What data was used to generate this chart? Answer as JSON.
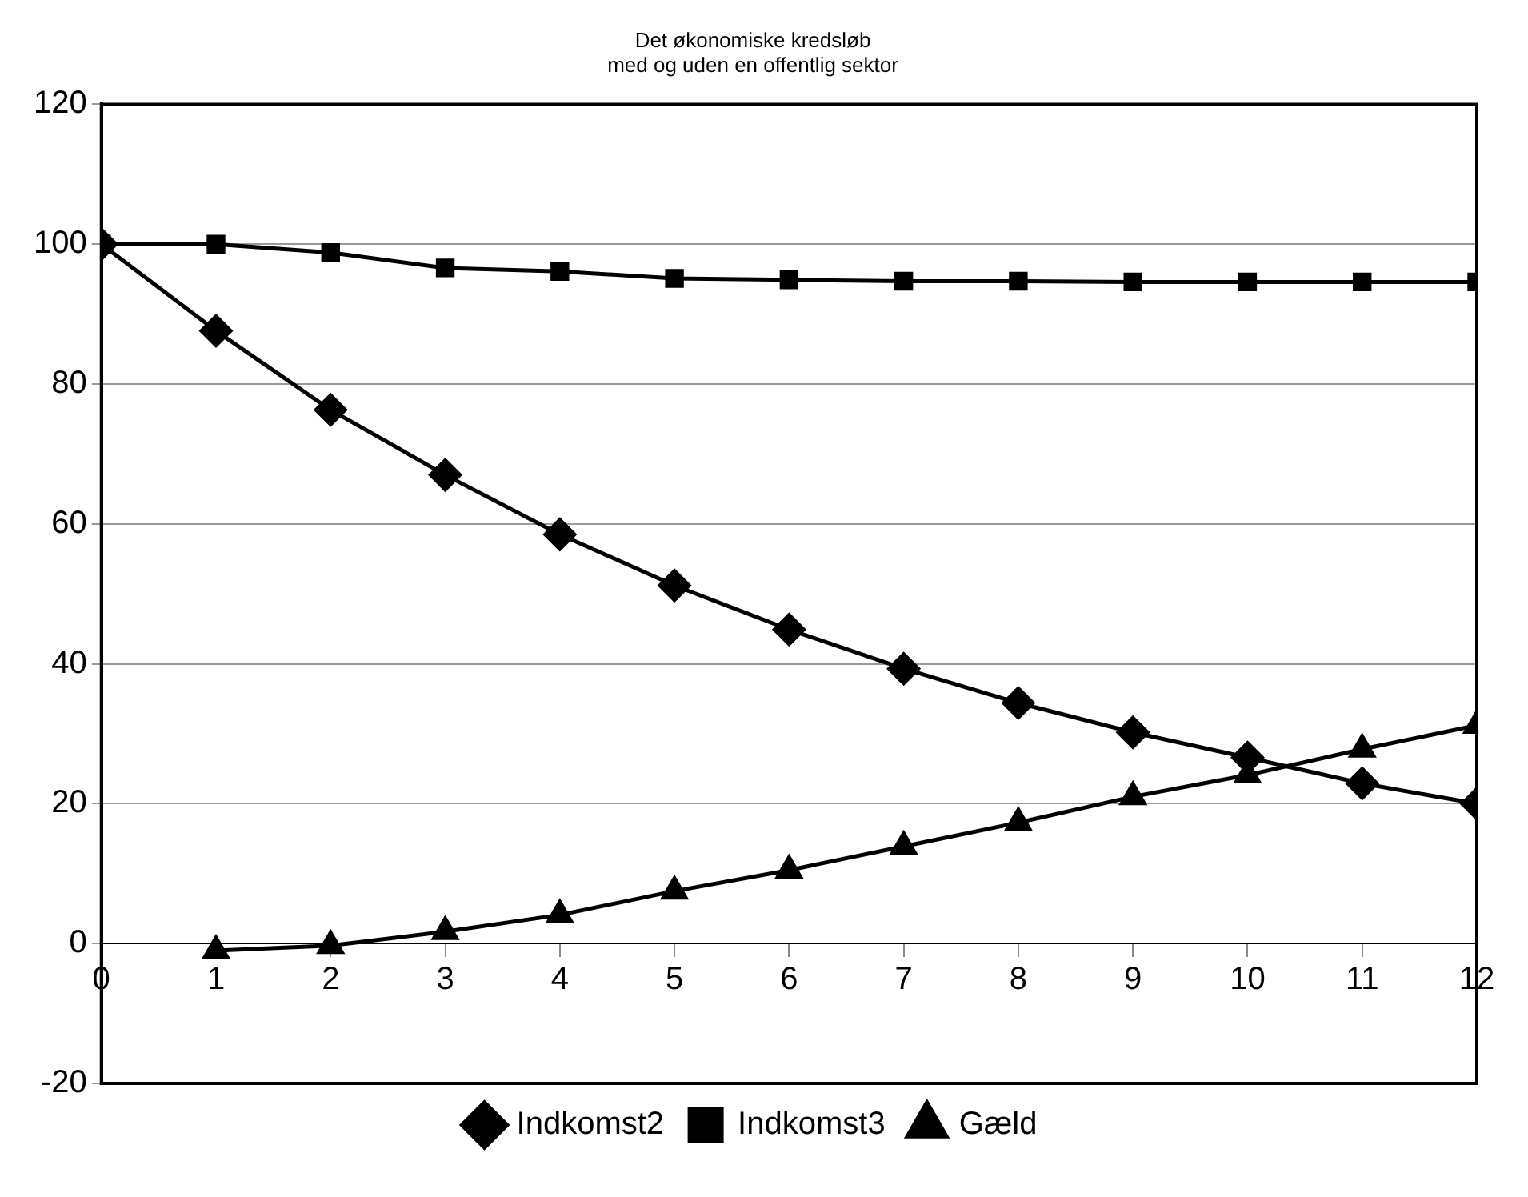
{
  "chart_data": {
    "type": "line",
    "title": "Det økonomiske kredsløb\nmed og uden en offentlig sektor",
    "x": [
      0,
      1,
      2,
      3,
      4,
      5,
      6,
      7,
      8,
      9,
      10,
      11,
      12
    ],
    "series": [
      {
        "name": "Indkomst2",
        "color": "#000000",
        "marker": "diamond",
        "values": [
          100,
          87.6,
          76.3,
          67,
          58.5,
          51.2,
          44.9,
          39.3,
          34.4,
          30.2,
          26.6,
          22.9,
          20
        ]
      },
      {
        "name": "Indkomst3",
        "color": "#000000",
        "marker": "square",
        "values": [
          100,
          100,
          98.8,
          96.6,
          96.1,
          95.1,
          94.9,
          94.7,
          94.7,
          94.6,
          94.6,
          94.6,
          94.6
        ]
      },
      {
        "name": "Gæld",
        "color": "#000000",
        "marker": "triangle",
        "x": [
          1,
          2,
          3,
          4,
          5,
          6,
          7,
          8,
          9,
          10,
          11,
          12
        ],
        "values": [
          -1,
          -0.3,
          1.7,
          4.1,
          7.5,
          10.5,
          13.9,
          17.3,
          21,
          24.1,
          27.8,
          31.2
        ]
      }
    ],
    "xlim": [
      0,
      12
    ],
    "xticks": [
      0,
      1,
      2,
      3,
      4,
      5,
      6,
      7,
      8,
      9,
      10,
      11,
      12
    ],
    "ylim": [
      -20,
      120
    ],
    "yticks": [
      -20,
      0,
      20,
      40,
      60,
      80,
      100,
      120
    ],
    "grid": "y",
    "legend": "bottom",
    "line_style": "solid"
  }
}
